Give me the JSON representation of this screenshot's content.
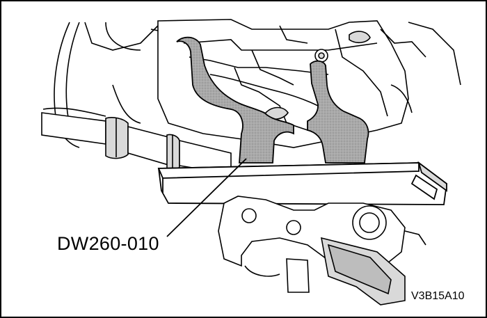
{
  "diagram": {
    "tool_label": "DW260-010",
    "figure_code": "V3B15A10",
    "colors": {
      "line": "#000000",
      "paper": "#ffffff",
      "tool_fill": "#a8a8a8",
      "shade_light": "#d9d9d9",
      "shade_mid": "#bdbdbd"
    }
  }
}
